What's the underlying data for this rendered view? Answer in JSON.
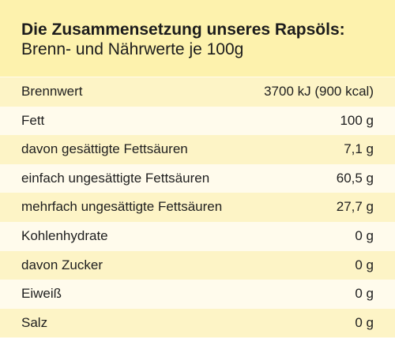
{
  "header": {
    "title": "Die Zusammensetzung unseres Rapsöls:",
    "subtitle": "Brenn- und Nährwerte je 100g"
  },
  "colors": {
    "header_background": "#fdf2ad",
    "row_stripe": "#fdf4c6",
    "row_plain": "#fffbec",
    "text": "#1e1e1e"
  },
  "rows": [
    {
      "label": "Brennwert",
      "value": "3700 kJ (900 kcal)"
    },
    {
      "label": "Fett",
      "value": "100 g"
    },
    {
      "label": "davon gesättigte Fettsäuren",
      "value": "7,1 g"
    },
    {
      "label": "einfach ungesättigte Fettsäuren",
      "value": "60,5 g"
    },
    {
      "label": "mehrfach ungesättigte Fettsäuren",
      "value": "27,7 g"
    },
    {
      "label": "Kohlenhydrate",
      "value": "0 g"
    },
    {
      "label": "davon Zucker",
      "value": "0 g"
    },
    {
      "label": "Eiweiß",
      "value": "0 g"
    },
    {
      "label": "Salz",
      "value": "0 g"
    }
  ]
}
